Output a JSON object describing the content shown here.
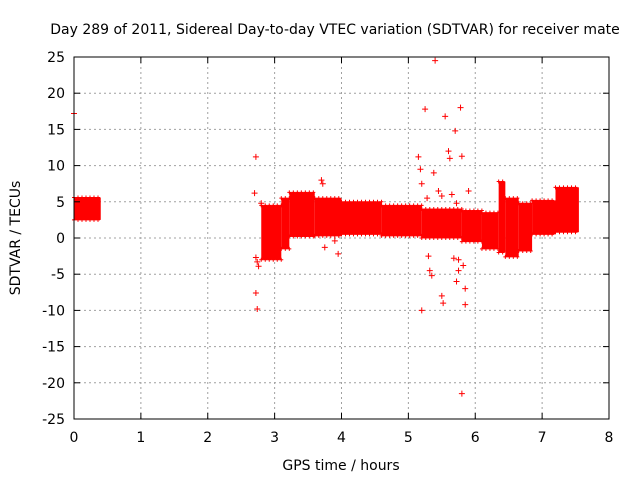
{
  "chart_data": {
    "type": "scatter",
    "title": "Day 289 of 2011, Sidereal Day-to-day VTEC variation (SDTVAR) for receiver mate",
    "xlabel": "GPS time / hours",
    "ylabel": "SDTVAR / TECUs",
    "xlim": [
      0,
      8
    ],
    "ylim": [
      -25,
      25
    ],
    "xticks": [
      0,
      1,
      2,
      3,
      4,
      5,
      6,
      7,
      8
    ],
    "yticks": [
      -25,
      -20,
      -15,
      -10,
      -5,
      0,
      5,
      10,
      15,
      20,
      25
    ],
    "grid": true,
    "series_color": "#ff0000",
    "bands": [
      {
        "x0": 0.0,
        "x1": 0.4,
        "lo": 2.5,
        "hi": 5.6
      },
      {
        "x0": 2.8,
        "x1": 3.1,
        "lo": -3.0,
        "hi": 4.5
      },
      {
        "x0": 3.1,
        "x1": 3.22,
        "lo": -1.5,
        "hi": 5.5
      },
      {
        "x0": 3.22,
        "x1": 3.6,
        "lo": 0.2,
        "hi": 6.3
      },
      {
        "x0": 3.6,
        "x1": 4.0,
        "lo": 0.3,
        "hi": 5.5
      },
      {
        "x0": 4.0,
        "x1": 4.6,
        "lo": 0.5,
        "hi": 5.0
      },
      {
        "x0": 4.6,
        "x1": 5.2,
        "lo": 0.3,
        "hi": 4.5
      },
      {
        "x0": 5.2,
        "x1": 5.8,
        "lo": 0.0,
        "hi": 4.0
      },
      {
        "x0": 5.8,
        "x1": 6.1,
        "lo": -0.5,
        "hi": 3.8
      },
      {
        "x0": 6.1,
        "x1": 6.35,
        "lo": -1.5,
        "hi": 3.5
      },
      {
        "x0": 6.35,
        "x1": 6.45,
        "lo": -2.0,
        "hi": 7.8
      },
      {
        "x0": 6.45,
        "x1": 6.65,
        "lo": -2.6,
        "hi": 5.5
      },
      {
        "x0": 6.65,
        "x1": 6.85,
        "lo": -1.8,
        "hi": 4.8
      },
      {
        "x0": 6.85,
        "x1": 7.2,
        "lo": 0.5,
        "hi": 5.2
      },
      {
        "x0": 7.2,
        "x1": 7.55,
        "lo": 0.8,
        "hi": 7.0
      }
    ],
    "outliers": [
      [
        0.0,
        17.2
      ],
      [
        2.72,
        11.2
      ],
      [
        2.7,
        6.2
      ],
      [
        2.72,
        -2.7
      ],
      [
        2.74,
        -3.3
      ],
      [
        2.76,
        -3.9
      ],
      [
        2.72,
        -7.6
      ],
      [
        2.74,
        -9.8
      ],
      [
        2.8,
        4.8
      ],
      [
        2.85,
        3.5
      ],
      [
        2.9,
        2.0
      ],
      [
        3.7,
        8.0
      ],
      [
        3.72,
        7.5
      ],
      [
        3.75,
        -1.3
      ],
      [
        3.78,
        2.0
      ],
      [
        3.95,
        -2.2
      ],
      [
        3.9,
        -0.4
      ],
      [
        5.15,
        11.2
      ],
      [
        5.18,
        9.5
      ],
      [
        5.2,
        7.5
      ],
      [
        5.25,
        17.8
      ],
      [
        5.28,
        5.5
      ],
      [
        5.3,
        -2.5
      ],
      [
        5.32,
        -4.5
      ],
      [
        5.35,
        -5.2
      ],
      [
        5.38,
        9.0
      ],
      [
        5.4,
        24.5
      ],
      [
        5.45,
        6.5
      ],
      [
        5.5,
        5.8
      ],
      [
        5.55,
        16.8
      ],
      [
        5.6,
        12.0
      ],
      [
        5.62,
        11.0
      ],
      [
        5.65,
        6.0
      ],
      [
        5.7,
        14.8
      ],
      [
        5.72,
        4.8
      ],
      [
        5.75,
        -4.5
      ],
      [
        5.78,
        18.0
      ],
      [
        5.8,
        11.3
      ],
      [
        5.82,
        -3.8
      ],
      [
        5.85,
        -7.0
      ],
      [
        5.8,
        -21.5
      ],
      [
        5.5,
        -8.0
      ],
      [
        5.52,
        -9.0
      ],
      [
        5.2,
        -10.0
      ],
      [
        5.85,
        -9.2
      ],
      [
        5.9,
        6.5
      ],
      [
        5.92,
        3.0
      ],
      [
        5.75,
        -3.0
      ],
      [
        5.68,
        -2.8
      ],
      [
        5.72,
        -6.0
      ]
    ]
  }
}
